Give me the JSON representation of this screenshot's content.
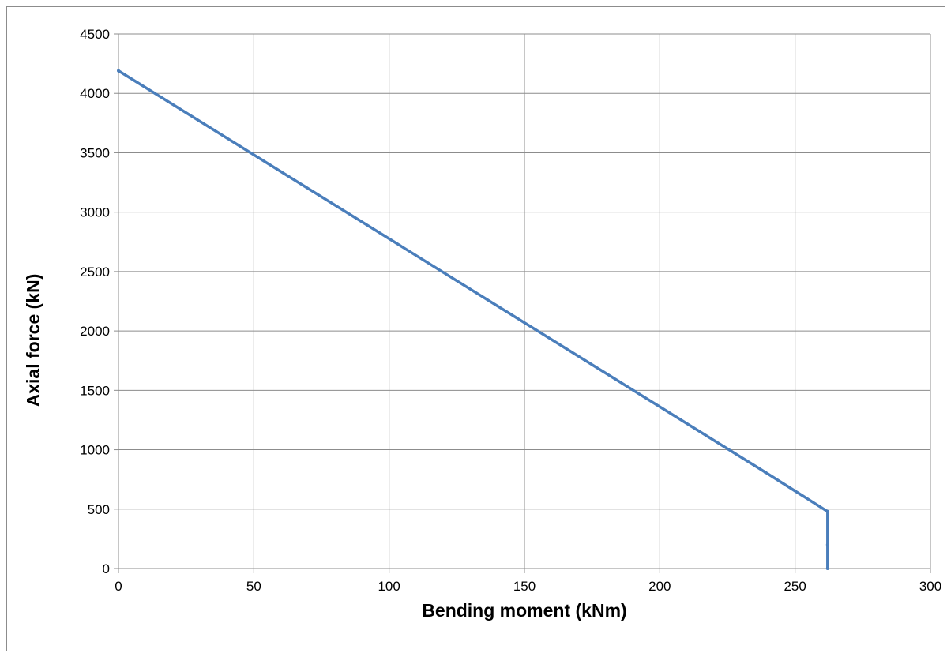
{
  "chart_data": {
    "type": "line",
    "title": "",
    "xlabel": "Bending moment (kNm)",
    "ylabel": "Axial force (kN)",
    "xlim": [
      0,
      300
    ],
    "ylim": [
      0,
      4500
    ],
    "xticks": [
      0,
      50,
      100,
      150,
      200,
      250,
      300
    ],
    "yticks": [
      0,
      500,
      1000,
      1500,
      2000,
      2500,
      3000,
      3500,
      4000,
      4500
    ],
    "grid": true,
    "legend": "none",
    "series": [
      {
        "color": "#4a7ebb",
        "x": [
          0,
          239,
          262,
          262,
          262
        ],
        "y": [
          4190,
          810,
          480,
          200,
          0
        ]
      }
    ]
  }
}
